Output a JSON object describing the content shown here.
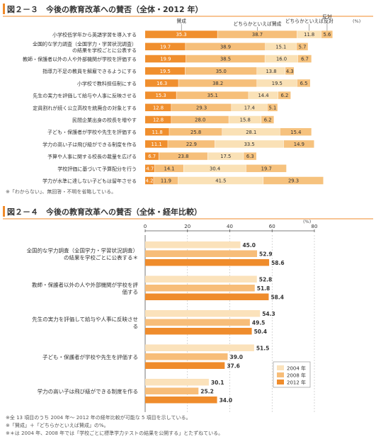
{
  "colors": {
    "title_bar": "#f08a2a",
    "agree": "#f08f2e",
    "somewhat_agree": "#f6bf7a",
    "somewhat_disagree": "#fae1b6",
    "disagree": "#f6c27e",
    "y2004": "#fbe2bb",
    "y2008": "#f7bd79",
    "y2012": "#ef8c2c",
    "text": "#333333",
    "grid": "#bbbbbb"
  },
  "chart_data": [
    {
      "type": "bar",
      "stacked": true,
      "orientation": "horizontal",
      "title": "図２－３　今後の教育改革への賛否（全体・2012 年）",
      "legend": [
        "賛成",
        "どちらかといえば賛成",
        "どちらかといえば反対",
        "反対"
      ],
      "unit": "(%)",
      "note": "※「わからない」、無回答・不明を省略している。",
      "categories": [
        "小学校低学年から英語学習を導入する",
        "全国的な学力調査（全国学力・学習状況調査）の結果を学校ごとに公表する",
        "教師・保護者以外の人や外部機関が学校を評価する",
        "指導力不足の教員を解雇できるようにする",
        "小学校で教科担任制にする",
        "先生の実力を評価して給与や人事に反映させる",
        "定員割れが続く公立高校を統廃合の対象とする",
        "民間企業出身の校長を増やす",
        "子ども・保護者が学校や先生を評価する",
        "学力の高い子は飛び級ができる制度を作る",
        "予算や人事に関する校長の裁量を広げる",
        "学校評価に基づいて予算配分を行う",
        "学力が水準に達しない子どもは留年させる"
      ],
      "series": [
        {
          "name": "賛成",
          "values": [
            35.3,
            19.7,
            19.9,
            19.5,
            16.3,
            15.3,
            12.8,
            12.8,
            11.8,
            11.1,
            6.7,
            4.7,
            4.2
          ]
        },
        {
          "name": "どちらかといえば賛成",
          "values": [
            38.7,
            38.9,
            38.5,
            35.0,
            38.2,
            35.1,
            29.3,
            28.0,
            25.8,
            22.9,
            23.8,
            14.1,
            11.9
          ]
        },
        {
          "name": "どちらかといえば反対",
          "values": [
            11.8,
            15.1,
            16.0,
            13.8,
            19.5,
            14.4,
            17.4,
            15.8,
            28.1,
            33.5,
            17.5,
            30.4,
            41.5
          ]
        },
        {
          "name": "反対",
          "values": [
            5.6,
            5.7,
            6.7,
            4.3,
            6.5,
            6.2,
            5.1,
            6.2,
            15.4,
            14.9,
            6.3,
            19.7,
            29.3
          ]
        }
      ]
    },
    {
      "type": "bar",
      "orientation": "horizontal",
      "title": "図２－４　今後の教育改革への賛否（全体・経年比較）",
      "unit": "(%)",
      "xlim": [
        0,
        80
      ],
      "ticks": [
        0,
        20,
        40,
        60,
        80
      ],
      "categories": [
        "全国的な学力調査（全国学力・学習状況調査）の結果を学校ごとに公表する＊",
        "教師・保護者以外の人や外部機関が学校を評価する",
        "先生の実力を評価して給与や人事に反映させる",
        "子ども・保護者が学校や先生を評価する",
        "学力の高い子は飛び級ができる制度を作る"
      ],
      "series": [
        {
          "name": "2004 年",
          "values": [
            45.0,
            52.8,
            54.3,
            51.5,
            30.1
          ]
        },
        {
          "name": "2008 年",
          "values": [
            52.9,
            51.8,
            49.5,
            39.0,
            25.2
          ]
        },
        {
          "name": "2012 年",
          "values": [
            58.6,
            58.4,
            50.4,
            37.6,
            34.0
          ]
        }
      ],
      "notes": [
        "※全 13 項目のうち 2004 年～ 2012 年の経年比較が可能な 5 項目を示している。",
        "※「賛成」＋「どちらかといえば賛成」の%。",
        "※＊は 2004 年、2008 年では「学校ごとに標準学力テストの結果を公開する」とたずねている。"
      ]
    }
  ]
}
